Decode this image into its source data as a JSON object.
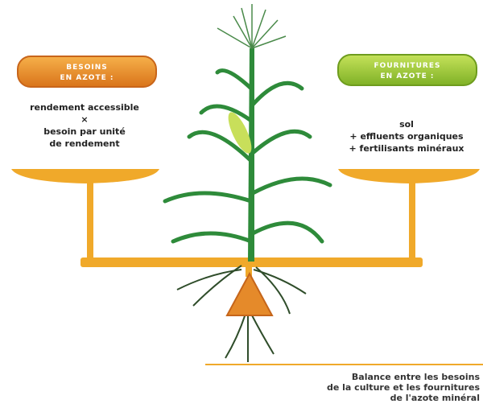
{
  "left_panel": {
    "title": [
      "BESOINS",
      "EN AZOTE :"
    ],
    "lines": [
      "rendement accessible",
      "×",
      "besoin par unité",
      "de rendement"
    ]
  },
  "right_panel": {
    "title": [
      "FOURNITURES",
      "EN AZOTE :"
    ],
    "lines": [
      "sol",
      "+ effluents organiques",
      "+ fertilisants minéraux"
    ]
  },
  "caption": [
    "Balance entre les besoins",
    "de la culture et les fournitures",
    "de l'azote minéral"
  ]
}
